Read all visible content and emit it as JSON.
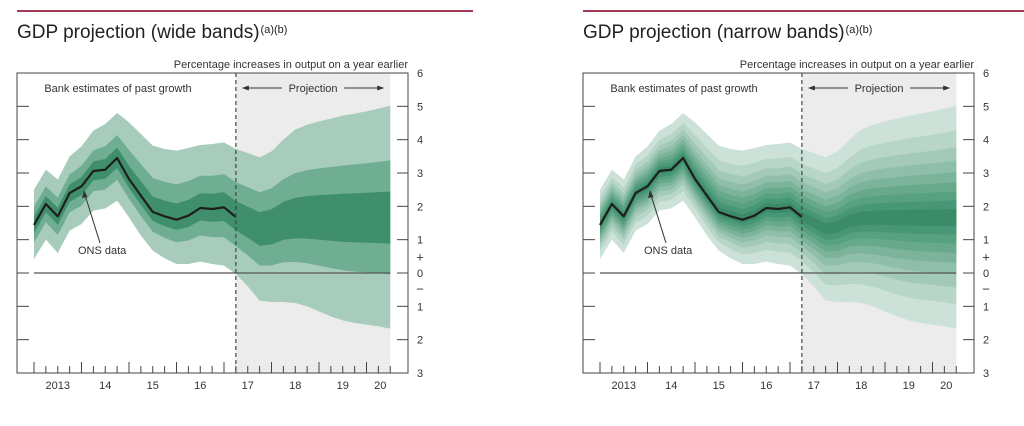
{
  "chart_data": [
    {
      "type": "area",
      "title": "GDP projection (wide bands)",
      "title_notes": "(a)(b)",
      "ylabel": "Percentage increases in output on a year earlier",
      "ylim": [
        -3,
        6
      ],
      "y_ticks": [
        6,
        5,
        4,
        3,
        2,
        1,
        0,
        -1,
        -2,
        -3
      ],
      "y_tick_labels": [
        "6",
        "5",
        "4",
        "3",
        "2",
        "1",
        "0",
        "1",
        "2",
        "3"
      ],
      "sign_labels": {
        "plus": "+",
        "minus": "−"
      },
      "x_tick_labels": [
        "2013",
        "14",
        "15",
        "16",
        "17",
        "18",
        "19",
        "20"
      ],
      "past_label": "Bank estimates of past growth",
      "projection_label": "Projection",
      "projection_start": 2017.25,
      "ons_label": "ONS data",
      "x": [
        2013,
        2013.25,
        2013.5,
        2013.75,
        2014,
        2014.25,
        2014.5,
        2014.75,
        2015,
        2015.25,
        2015.5,
        2015.75,
        2016,
        2016.25,
        2016.5,
        2016.75,
        2017,
        2017.25,
        2017.5,
        2017.75,
        2018,
        2018.25,
        2018.5,
        2018.75,
        2019,
        2019.25,
        2019.5,
        2019.75,
        2020,
        2020.25,
        2020.5
      ],
      "central": [
        1.44,
        2.07,
        1.7,
        2.4,
        2.6,
        3.06,
        3.1,
        3.45,
        2.82,
        2.32,
        1.83,
        1.7,
        1.6,
        1.72,
        1.95,
        1.92,
        1.97,
        1.68,
        1.5,
        1.32,
        1.38,
        1.57,
        1.63,
        1.65,
        1.66,
        1.66,
        1.66,
        1.66,
        1.66,
        1.66,
        1.66
      ],
      "upper_90": [
        2.5,
        3.1,
        2.8,
        3.5,
        3.8,
        4.27,
        4.47,
        4.8,
        4.52,
        4.17,
        3.82,
        3.72,
        3.67,
        3.75,
        3.84,
        3.87,
        3.92,
        3.72,
        3.6,
        3.47,
        3.65,
        4.0,
        4.3,
        4.45,
        4.55,
        4.63,
        4.72,
        4.78,
        4.85,
        4.93,
        5.02
      ],
      "lower_90": [
        0.42,
        1.0,
        0.6,
        1.27,
        1.47,
        1.87,
        1.94,
        2.17,
        1.67,
        1.12,
        0.67,
        0.44,
        0.27,
        0.27,
        0.34,
        0.27,
        0.22,
        -0.03,
        -0.4,
        -0.83,
        -0.87,
        -0.87,
        -0.9,
        -1.0,
        -1.15,
        -1.3,
        -1.42,
        -1.5,
        -1.55,
        -1.6,
        -1.67
      ],
      "ons_data": [
        1.44,
        2.07,
        1.7,
        2.4,
        2.6,
        3.06,
        3.1,
        3.45,
        2.82,
        2.32,
        1.83,
        1.7,
        1.6,
        1.72,
        1.95,
        1.92,
        1.97,
        1.68
      ],
      "band_probabilities": [
        90,
        60,
        30
      ],
      "band_colors": [
        "#a7ccbc",
        "#6fae92",
        "#3f8e6c"
      ],
      "projection_shade_color": "#ececec",
      "rule_color": "#a33a55",
      "grid": false
    },
    {
      "type": "area",
      "title": "GDP projection (narrow bands)",
      "title_notes": "(a)(b)",
      "ylabel": "Percentage increases in output on a year earlier",
      "ylim": [
        -3,
        6
      ],
      "y_ticks": [
        6,
        5,
        4,
        3,
        2,
        1,
        0,
        -1,
        -2,
        -3
      ],
      "y_tick_labels": [
        "6",
        "5",
        "4",
        "3",
        "2",
        "1",
        "0",
        "1",
        "2",
        "3"
      ],
      "sign_labels": {
        "plus": "+",
        "minus": "−"
      },
      "x_tick_labels": [
        "2013",
        "14",
        "15",
        "16",
        "17",
        "18",
        "19",
        "20"
      ],
      "past_label": "Bank estimates of past growth",
      "projection_label": "Projection",
      "projection_start": 2017.25,
      "ons_label": "ONS data",
      "x": [
        2013,
        2013.25,
        2013.5,
        2013.75,
        2014,
        2014.25,
        2014.5,
        2014.75,
        2015,
        2015.25,
        2015.5,
        2015.75,
        2016,
        2016.25,
        2016.5,
        2016.75,
        2017,
        2017.25,
        2017.5,
        2017.75,
        2018,
        2018.25,
        2018.5,
        2018.75,
        2019,
        2019.25,
        2019.5,
        2019.75,
        2020,
        2020.25,
        2020.5
      ],
      "central": [
        1.44,
        2.07,
        1.7,
        2.4,
        2.6,
        3.06,
        3.1,
        3.45,
        2.82,
        2.32,
        1.83,
        1.7,
        1.6,
        1.72,
        1.95,
        1.92,
        1.97,
        1.68,
        1.5,
        1.32,
        1.38,
        1.57,
        1.63,
        1.65,
        1.66,
        1.66,
        1.66,
        1.66,
        1.66,
        1.66,
        1.66
      ],
      "upper_90": [
        2.5,
        3.1,
        2.8,
        3.5,
        3.8,
        4.27,
        4.47,
        4.8,
        4.52,
        4.17,
        3.82,
        3.72,
        3.67,
        3.75,
        3.84,
        3.87,
        3.92,
        3.72,
        3.6,
        3.47,
        3.65,
        4.0,
        4.3,
        4.45,
        4.55,
        4.63,
        4.72,
        4.78,
        4.85,
        4.93,
        5.02
      ],
      "lower_90": [
        0.42,
        1.0,
        0.6,
        1.27,
        1.47,
        1.87,
        1.94,
        2.17,
        1.67,
        1.12,
        0.67,
        0.44,
        0.27,
        0.27,
        0.34,
        0.27,
        0.22,
        -0.03,
        -0.4,
        -0.83,
        -0.87,
        -0.87,
        -0.9,
        -1.0,
        -1.15,
        -1.3,
        -1.42,
        -1.5,
        -1.55,
        -1.6,
        -1.67
      ],
      "ons_data": [
        1.44,
        2.07,
        1.7,
        2.4,
        2.6,
        3.06,
        3.1,
        3.45,
        2.82,
        2.32,
        1.83,
        1.7,
        1.6,
        1.72,
        1.95,
        1.92,
        1.97,
        1.68
      ],
      "band_probabilities": [
        90,
        80,
        70,
        60,
        50,
        40,
        30,
        20,
        10
      ],
      "band_colors": [
        "#cce2d8",
        "#b7d6c8",
        "#a3cab9",
        "#8fbfaa",
        "#7bb49b",
        "#68a98c",
        "#57a080",
        "#479675",
        "#3b8b69"
      ],
      "projection_shade_color": "#ececec",
      "rule_color": "#a33a55",
      "grid": false
    }
  ]
}
